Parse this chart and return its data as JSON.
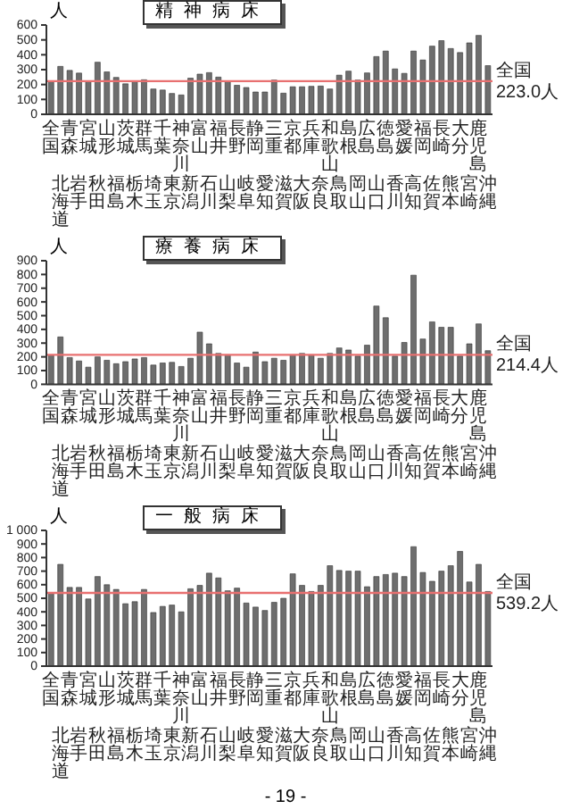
{
  "chart_data": [
    {
      "type": "bar",
      "title": "精神病床",
      "ylabel": "人",
      "categories": [
        "全国",
        "北海道",
        "青森",
        "岩手",
        "宮城",
        "秋田",
        "山形",
        "福島",
        "茨城",
        "栃木",
        "群馬",
        "埼玉",
        "千葉",
        "東京",
        "神奈川",
        "新潟",
        "富山",
        "石川",
        "福井",
        "山梨",
        "長野",
        "岐阜",
        "静岡",
        "愛知",
        "三重",
        "滋賀",
        "京都",
        "大阪",
        "兵庫",
        "奈良",
        "和歌山",
        "鳥取",
        "島根",
        "岡山",
        "広島",
        "山口",
        "徳島",
        "香川",
        "愛媛",
        "高知",
        "福岡",
        "佐賀",
        "長崎",
        "熊本",
        "大分",
        "宮崎",
        "鹿児島",
        "沖縄"
      ],
      "values": [
        223,
        322,
        295,
        277,
        220,
        350,
        285,
        248,
        205,
        220,
        232,
        170,
        163,
        140,
        130,
        243,
        270,
        280,
        250,
        222,
        195,
        180,
        150,
        150,
        230,
        142,
        185,
        185,
        188,
        190,
        170,
        263,
        290,
        230,
        278,
        388,
        425,
        305,
        275,
        425,
        365,
        458,
        495,
        442,
        415,
        480,
        530,
        327
      ],
      "color": "#6e6e6e",
      "ylim": [
        0,
        600
      ],
      "yticks": [
        0,
        100,
        200,
        300,
        400,
        500,
        600
      ],
      "ref_lines": [
        {
          "axis": "y",
          "value": 223,
          "label": "全国 223.0人",
          "color": "#e87070"
        }
      ]
    },
    {
      "type": "bar",
      "title": "療養病床",
      "ylabel": "人",
      "categories": [
        "全国",
        "北海道",
        "青森",
        "岩手",
        "宮城",
        "秋田",
        "山形",
        "福島",
        "茨城",
        "栃木",
        "群馬",
        "埼玉",
        "千葉",
        "東京",
        "神奈川",
        "新潟",
        "富山",
        "石川",
        "福井",
        "山梨",
        "長野",
        "岐阜",
        "静岡",
        "愛知",
        "三重",
        "滋賀",
        "京都",
        "大阪",
        "兵庫",
        "奈良",
        "和歌山",
        "鳥取",
        "島根",
        "岡山",
        "広島",
        "山口",
        "徳島",
        "香川",
        "愛媛",
        "高知",
        "福岡",
        "佐賀",
        "長崎",
        "熊本",
        "大分",
        "宮崎",
        "鹿児島",
        "沖縄"
      ],
      "values": [
        214,
        345,
        195,
        170,
        125,
        200,
        175,
        150,
        165,
        185,
        195,
        140,
        155,
        160,
        130,
        190,
        380,
        295,
        225,
        215,
        155,
        125,
        235,
        165,
        190,
        175,
        215,
        225,
        215,
        190,
        225,
        265,
        250,
        205,
        285,
        570,
        485,
        205,
        305,
        795,
        330,
        455,
        415,
        415,
        205,
        295,
        440,
        245
      ],
      "color": "#6e6e6e",
      "ylim": [
        0,
        900
      ],
      "yticks": [
        0,
        100,
        200,
        300,
        400,
        500,
        600,
        700,
        800,
        900
      ],
      "ref_lines": [
        {
          "axis": "y",
          "value": 214.4,
          "label": "全国 214.4人",
          "color": "#e87070"
        }
      ]
    },
    {
      "type": "bar",
      "title": "一般病床",
      "ylabel": "人",
      "categories": [
        "全国",
        "北海道",
        "青森",
        "岩手",
        "宮城",
        "秋田",
        "山形",
        "福島",
        "茨城",
        "栃木",
        "群馬",
        "埼玉",
        "千葉",
        "東京",
        "神奈川",
        "新潟",
        "富山",
        "石川",
        "福井",
        "山梨",
        "長野",
        "岐阜",
        "静岡",
        "愛知",
        "三重",
        "滋賀",
        "京都",
        "大阪",
        "兵庫",
        "奈良",
        "和歌山",
        "鳥取",
        "島根",
        "岡山",
        "広島",
        "山口",
        "徳島",
        "香川",
        "愛媛",
        "高知",
        "福岡",
        "佐賀",
        "長崎",
        "熊本",
        "大分",
        "宮崎",
        "鹿児島",
        "沖縄"
      ],
      "values": [
        540,
        750,
        580,
        580,
        495,
        660,
        600,
        565,
        460,
        475,
        565,
        395,
        440,
        450,
        400,
        570,
        595,
        685,
        650,
        555,
        575,
        465,
        435,
        410,
        470,
        500,
        680,
        595,
        550,
        595,
        740,
        705,
        700,
        700,
        585,
        660,
        675,
        685,
        660,
        880,
        690,
        625,
        700,
        740,
        845,
        620,
        750,
        550
      ],
      "color": "#6e6e6e",
      "ylim": [
        0,
        1000
      ],
      "yticks": [
        0,
        100,
        200,
        300,
        400,
        500,
        600,
        700,
        800,
        900,
        {
          "value": 1000,
          "label": "1 000"
        }
      ],
      "ref_lines": [
        {
          "axis": "y",
          "value": 539.2,
          "label": "全国 539.2人",
          "color": "#e87070"
        }
      ],
      "annotations": [
        "- 19 -"
      ]
    }
  ]
}
